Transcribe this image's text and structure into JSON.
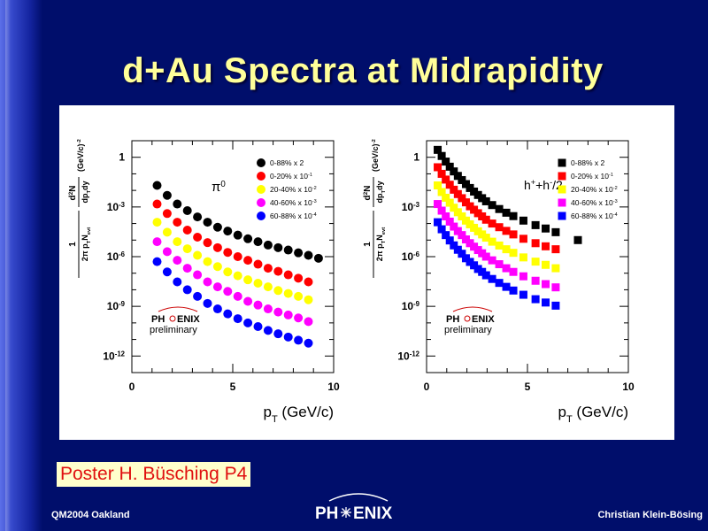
{
  "slide": {
    "title": "d+Au Spectra at Midrapidity",
    "poster_note": "Poster H. Büsching P4",
    "footer_left": "QM2004 Oakland",
    "footer_right": "Christian Klein-Bösing",
    "footer_logo_text": [
      "PH",
      "ENIX"
    ],
    "background_color": "#000e6b",
    "title_color": "#ffff99"
  },
  "chart_data": [
    {
      "type": "scatter",
      "log_y": true,
      "title": "",
      "particle_label": "π0",
      "xlabel": "pT (GeV/c)",
      "ylabel": "1/(2π pT Nevt) d²N/(dpT dy) (GeV/c)^-2",
      "xlim": [
        0,
        10
      ],
      "ylim": [
        1e-13,
        10.0
      ],
      "x_ticks": [
        "0",
        "5",
        "10"
      ],
      "y_ticks": [
        {
          "value": 1,
          "label": "1"
        },
        {
          "value": 0.001,
          "label": "10^-3"
        },
        {
          "value": 1e-06,
          "label": "10^-6"
        },
        {
          "value": 1e-09,
          "label": "10^-9"
        },
        {
          "value": 1e-12,
          "label": "10^-12"
        }
      ],
      "marker": "circle",
      "logo_text": [
        "PH",
        "ENIX"
      ],
      "logo_sub": "preliminary",
      "legend_position": "top-right",
      "x": [
        1.25,
        1.75,
        2.25,
        2.75,
        3.25,
        3.75,
        4.25,
        4.75,
        5.25,
        5.75,
        6.25,
        6.75,
        7.25,
        7.75,
        8.25,
        8.75,
        9.25
      ],
      "series": [
        {
          "name": "0-88% x 2",
          "color": "#000000",
          "values": [
            0.02,
            0.005,
            0.0015,
            0.0006,
            0.00025,
            0.00012,
            6e-05,
            3.5e-05,
            2e-05,
            1.2e-05,
            8e-06,
            5e-06,
            3.5e-06,
            2.5e-06,
            1.7e-06,
            1.2e-06,
            8e-07
          ]
        },
        {
          "name": "0-20% x 10^-1",
          "color": "#ff0000",
          "values": [
            0.0015,
            0.0004,
            0.00012,
            4e-05,
            1.5e-05,
            7e-06,
            3.5e-06,
            1.8e-06,
            1e-06,
            6e-07,
            3.5e-07,
            2e-07,
            1.3e-07,
            8e-08,
            5e-08,
            3e-08
          ]
        },
        {
          "name": "20-40% x 10^-2",
          "color": "#ffff00",
          "values": [
            0.00012,
            3e-05,
            8e-06,
            3e-06,
            1.2e-06,
            5e-07,
            2.5e-07,
            1.2e-07,
            7e-08,
            4e-08,
            2.5e-08,
            1.5e-08,
            9e-09,
            6e-09,
            4e-09,
            2.5e-09
          ]
        },
        {
          "name": "40-60% x 10^-3",
          "color": "#ff00ff",
          "values": [
            8e-06,
            2e-06,
            6e-07,
            2e-07,
            8e-08,
            3e-08,
            1.5e-08,
            8e-09,
            4e-09,
            2e-09,
            1.2e-09,
            7e-10,
            4.5e-10,
            3e-10,
            2e-10,
            1.2e-10
          ]
        },
        {
          "name": "60-88% x 10^-4",
          "color": "#0000ff",
          "values": [
            5e-07,
            1.2e-07,
            3e-08,
            1e-08,
            4e-09,
            1.5e-09,
            7e-10,
            3.5e-10,
            1.8e-10,
            1e-10,
            6e-11,
            3.5e-11,
            2.2e-11,
            1.4e-11,
            9e-12,
            6e-12
          ]
        }
      ]
    },
    {
      "type": "scatter",
      "log_y": true,
      "title": "",
      "particle_label": "h++h-/2",
      "xlabel": "pT (GeV/c)",
      "ylabel": "1/(2π pT Nevt) d²N/(dpT dy) (GeV/c)^-2",
      "xlim": [
        0,
        10
      ],
      "ylim": [
        1e-13,
        10.0
      ],
      "x_ticks": [
        "0",
        "5",
        "10"
      ],
      "y_ticks": [
        {
          "value": 1,
          "label": "1"
        },
        {
          "value": 0.001,
          "label": "10^-3"
        },
        {
          "value": 1e-06,
          "label": "10^-6"
        },
        {
          "value": 1e-09,
          "label": "10^-9"
        },
        {
          "value": 1e-12,
          "label": "10^-12"
        }
      ],
      "marker": "square",
      "logo_text": [
        "PH",
        "ENIX"
      ],
      "logo_sub": "preliminary",
      "legend_position": "top-right",
      "x": [
        0.55,
        0.75,
        0.95,
        1.15,
        1.35,
        1.55,
        1.75,
        1.95,
        2.15,
        2.35,
        2.55,
        2.75,
        2.95,
        3.25,
        3.6,
        3.95,
        4.3,
        4.8,
        5.4,
        5.9,
        6.4,
        7.5
      ],
      "series": [
        {
          "name": "0-88% x 2",
          "color": "#000000",
          "values": [
            2.8,
            1.2,
            0.55,
            0.27,
            0.14,
            0.075,
            0.042,
            0.024,
            0.014,
            0.0085,
            0.0053,
            0.0034,
            0.0022,
            0.0013,
            0.00075,
            0.00045,
            0.00028,
            0.00015,
            8e-05,
            5e-05,
            3e-05,
            1e-05
          ]
        },
        {
          "name": "0-20% x 10^-1",
          "color": "#ff0000",
          "values": [
            0.25,
            0.1,
            0.045,
            0.022,
            0.011,
            0.006,
            0.0034,
            0.0019,
            0.0011,
            0.00068,
            0.00042,
            0.00027,
            0.00017,
            0.0001,
            6e-05,
            3.6e-05,
            2.2e-05,
            1.2e-05,
            6.5e-06,
            4.2e-06,
            2.8e-06
          ]
        },
        {
          "name": "20-40% x 10^-2",
          "color": "#ffff00",
          "values": [
            0.02,
            0.008,
            0.0036,
            0.0018,
            0.0009,
            0.00048,
            0.00027,
            0.00015,
            9e-05,
            5.5e-05,
            3.4e-05,
            2.2e-05,
            1.4e-05,
            8e-06,
            4.7e-06,
            2.8e-06,
            1.7e-06,
            9e-07,
            5e-07,
            3.2e-07,
            2e-07
          ]
        },
        {
          "name": "40-60% x 10^-3",
          "color": "#ff00ff",
          "values": [
            0.0015,
            0.0006,
            0.00027,
            0.00013,
            6.5e-05,
            3.5e-05,
            2e-05,
            1.1e-05,
            6.5e-06,
            4e-06,
            2.5e-06,
            1.6e-06,
            1e-06,
            6e-07,
            3.5e-07,
            2e-07,
            1.2e-07,
            6.5e-08,
            3.5e-08,
            2.2e-08,
            1.4e-08
          ]
        },
        {
          "name": "60-88% x 10^-4",
          "color": "#0000ff",
          "values": [
            0.00012,
            4.5e-05,
            2e-05,
            9.5e-06,
            4.8e-06,
            2.6e-06,
            1.5e-06,
            8e-07,
            4.8e-07,
            3e-07,
            1.8e-07,
            1.2e-07,
            7.5e-08,
            4.5e-08,
            2.6e-08,
            1.5e-08,
            9e-09,
            5e-09,
            2.7e-09,
            1.7e-09,
            1.1e-09
          ]
        }
      ]
    }
  ]
}
